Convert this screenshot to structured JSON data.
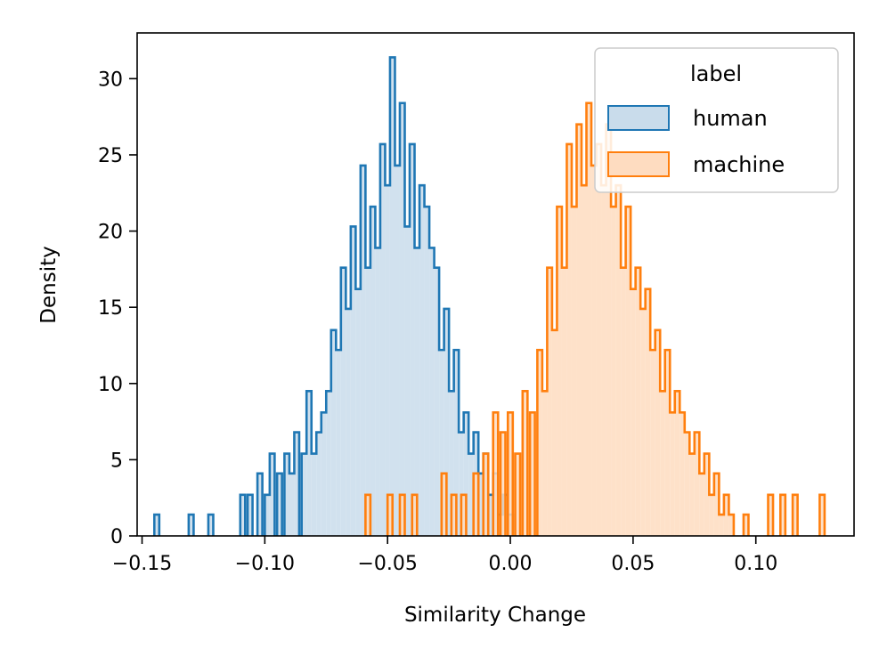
{
  "chart_data": {
    "type": "histogram",
    "style": "step",
    "xlabel": "Similarity Change",
    "ylabel": "Density",
    "xlim": [
      -0.152,
      0.14
    ],
    "ylim": [
      0,
      33
    ],
    "xticks": [
      -0.15,
      -0.1,
      -0.05,
      0.0,
      0.05,
      0.1
    ],
    "xtick_labels": [
      "−0.15",
      "−0.10",
      "−0.05",
      "0.00",
      "0.05",
      "0.10"
    ],
    "yticks": [
      0,
      5,
      10,
      15,
      20,
      25,
      30
    ],
    "ytick_labels": [
      "0",
      "5",
      "10",
      "15",
      "20",
      "25",
      "30"
    ],
    "legend": {
      "title": "label",
      "position": "top-right",
      "entries": [
        "human",
        "machine"
      ]
    },
    "series": [
      {
        "name": "human",
        "color": "#1f77b4",
        "fill": "#c9dceb",
        "bins": [
          [
            -0.145,
            1.4
          ],
          [
            -0.131,
            1.4
          ],
          [
            -0.123,
            1.4
          ],
          [
            -0.11,
            2.7
          ],
          [
            -0.107,
            2.7
          ],
          [
            -0.103,
            4.1
          ],
          [
            -0.1,
            2.7
          ],
          [
            -0.098,
            5.4
          ],
          [
            -0.095,
            4.1
          ],
          [
            -0.092,
            5.4
          ],
          [
            -0.09,
            4.1
          ],
          [
            -0.088,
            6.8
          ],
          [
            -0.085,
            5.4
          ],
          [
            -0.083,
            9.5
          ],
          [
            -0.081,
            5.4
          ],
          [
            -0.079,
            6.8
          ],
          [
            -0.077,
            8.1
          ],
          [
            -0.075,
            9.5
          ],
          [
            -0.073,
            13.5
          ],
          [
            -0.071,
            12.2
          ],
          [
            -0.069,
            17.6
          ],
          [
            -0.067,
            14.9
          ],
          [
            -0.065,
            20.3
          ],
          [
            -0.063,
            16.2
          ],
          [
            -0.061,
            24.3
          ],
          [
            -0.059,
            17.6
          ],
          [
            -0.057,
            21.6
          ],
          [
            -0.055,
            18.9
          ],
          [
            -0.053,
            25.7
          ],
          [
            -0.051,
            23.0
          ],
          [
            -0.049,
            31.4
          ],
          [
            -0.047,
            24.3
          ],
          [
            -0.045,
            28.4
          ],
          [
            -0.043,
            20.3
          ],
          [
            -0.041,
            25.7
          ],
          [
            -0.039,
            18.9
          ],
          [
            -0.037,
            23.0
          ],
          [
            -0.035,
            21.6
          ],
          [
            -0.033,
            18.9
          ],
          [
            -0.031,
            17.6
          ],
          [
            -0.029,
            12.2
          ],
          [
            -0.027,
            14.9
          ],
          [
            -0.025,
            9.5
          ],
          [
            -0.023,
            12.2
          ],
          [
            -0.021,
            6.8
          ],
          [
            -0.019,
            8.1
          ],
          [
            -0.017,
            5.4
          ],
          [
            -0.015,
            6.8
          ],
          [
            -0.013,
            4.1
          ],
          [
            -0.011,
            5.4
          ],
          [
            -0.009,
            2.7
          ],
          [
            -0.007,
            4.1
          ],
          [
            -0.005,
            1.4
          ],
          [
            -0.003,
            2.7
          ],
          [
            -0.001,
            1.4
          ]
        ]
      },
      {
        "name": "machine",
        "color": "#ff7f0e",
        "fill": "#fedcc0",
        "bins": [
          [
            -0.059,
            2.7
          ],
          [
            -0.05,
            2.7
          ],
          [
            -0.045,
            2.7
          ],
          [
            -0.04,
            2.7
          ],
          [
            -0.028,
            4.1
          ],
          [
            -0.024,
            2.7
          ],
          [
            -0.02,
            2.7
          ],
          [
            -0.015,
            4.1
          ],
          [
            -0.011,
            5.4
          ],
          [
            -0.007,
            8.1
          ],
          [
            -0.004,
            6.8
          ],
          [
            -0.001,
            8.1
          ],
          [
            0.002,
            5.4
          ],
          [
            0.005,
            9.5
          ],
          [
            0.008,
            8.1
          ],
          [
            0.011,
            12.2
          ],
          [
            0.013,
            9.5
          ],
          [
            0.015,
            17.6
          ],
          [
            0.017,
            13.5
          ],
          [
            0.019,
            21.6
          ],
          [
            0.021,
            17.6
          ],
          [
            0.023,
            25.7
          ],
          [
            0.025,
            21.6
          ],
          [
            0.027,
            27.0
          ],
          [
            0.029,
            23.0
          ],
          [
            0.031,
            28.4
          ],
          [
            0.033,
            24.3
          ],
          [
            0.035,
            25.7
          ],
          [
            0.037,
            23.0
          ],
          [
            0.039,
            27.0
          ],
          [
            0.041,
            21.6
          ],
          [
            0.043,
            23.0
          ],
          [
            0.045,
            17.6
          ],
          [
            0.047,
            21.6
          ],
          [
            0.049,
            16.2
          ],
          [
            0.051,
            17.6
          ],
          [
            0.053,
            14.9
          ],
          [
            0.055,
            16.2
          ],
          [
            0.057,
            12.2
          ],
          [
            0.059,
            13.5
          ],
          [
            0.061,
            9.5
          ],
          [
            0.063,
            12.2
          ],
          [
            0.065,
            8.1
          ],
          [
            0.067,
            9.5
          ],
          [
            0.069,
            8.1
          ],
          [
            0.071,
            6.8
          ],
          [
            0.073,
            5.4
          ],
          [
            0.075,
            6.8
          ],
          [
            0.077,
            4.1
          ],
          [
            0.079,
            5.4
          ],
          [
            0.081,
            2.7
          ],
          [
            0.083,
            4.1
          ],
          [
            0.085,
            1.4
          ],
          [
            0.087,
            2.7
          ],
          [
            0.089,
            1.4
          ],
          [
            0.095,
            1.4
          ],
          [
            0.105,
            2.7
          ],
          [
            0.11,
            2.7
          ],
          [
            0.115,
            2.7
          ],
          [
            0.126,
            2.7
          ]
        ]
      }
    ]
  }
}
